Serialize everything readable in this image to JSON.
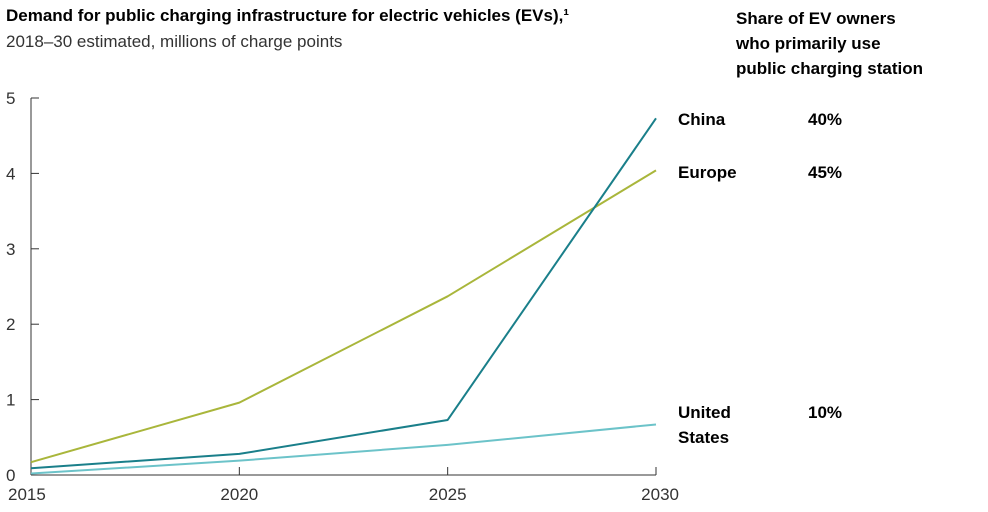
{
  "chart_data": {
    "type": "line",
    "title": "Demand for public charging infrastructure for electric vehicles (EVs),¹",
    "subtitle": "2018–30 estimated, millions of charge points",
    "x": [
      2015,
      2020,
      2025,
      2030
    ],
    "xlim": [
      2015,
      2030
    ],
    "ylim": [
      0,
      5
    ],
    "x_ticks": [
      "2015",
      "2020",
      "2025",
      "2030"
    ],
    "y_ticks": [
      "0",
      "1",
      "2",
      "3",
      "4",
      "5"
    ],
    "grid": false,
    "series": [
      {
        "name": "China",
        "color": "#1a7f8a",
        "values": [
          0.09,
          0.28,
          0.73,
          4.73
        ]
      },
      {
        "name": "Europe",
        "color": "#a9b63b",
        "values": [
          0.17,
          0.96,
          2.37,
          4.04
        ]
      },
      {
        "name": "United States",
        "color": "#6cc3c9",
        "values": [
          0.02,
          0.19,
          0.4,
          0.67
        ]
      }
    ],
    "legend_placement": "right",
    "labels": [
      {
        "lines": [
          "China"
        ],
        "share": "40%"
      },
      {
        "lines": [
          "Europe"
        ],
        "share": "45%"
      },
      {
        "lines": [
          "United",
          "States"
        ],
        "share": "10%"
      }
    ],
    "share_heading": [
      "Share of EV owners",
      "who primarily use",
      "public charging station"
    ]
  }
}
